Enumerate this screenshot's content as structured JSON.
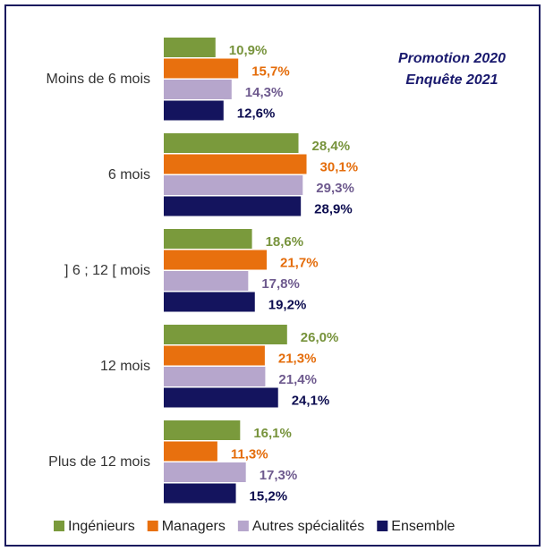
{
  "chart_data": {
    "type": "bar",
    "orientation": "horizontal",
    "annotations": [
      "Promotion 2020",
      "Enquête 2021"
    ],
    "categories": [
      "Moins de 6 mois",
      "6 mois",
      "] 6 ; 12 [ mois",
      "12 mois",
      "Plus de 12 mois"
    ],
    "series": [
      {
        "name": "Ingénieurs",
        "color": "#7a9a3c",
        "label_color": "#77933c",
        "values": [
          10.9,
          28.4,
          18.6,
          26.0,
          16.1
        ],
        "value_labels": [
          "10,9%",
          "28,4%",
          "18,6%",
          "26,0%",
          "16,1%"
        ]
      },
      {
        "name": "Managers",
        "color": "#e8700e",
        "label_color": "#e46c0a",
        "values": [
          15.7,
          30.1,
          21.7,
          21.3,
          11.3
        ],
        "value_labels": [
          "15,7%",
          "30,1%",
          "21,7%",
          "21,3%",
          "11,3%"
        ]
      },
      {
        "name": "Autres spécialités",
        "color": "#b6a6cc",
        "label_color": "#6e5a8e",
        "values": [
          14.3,
          29.3,
          17.8,
          21.4,
          17.3
        ],
        "value_labels": [
          "14,3%",
          "29,3%",
          "17,8%",
          "21,4%",
          "17,3%"
        ]
      },
      {
        "name": "Ensemble",
        "color": "#14145e",
        "label_color": "#0d0d50",
        "values": [
          12.6,
          28.9,
          19.2,
          24.1,
          15.2
        ],
        "value_labels": [
          "12,6%",
          "28,9%",
          "19,2%",
          "24,1%",
          "15,2%"
        ]
      }
    ]
  }
}
